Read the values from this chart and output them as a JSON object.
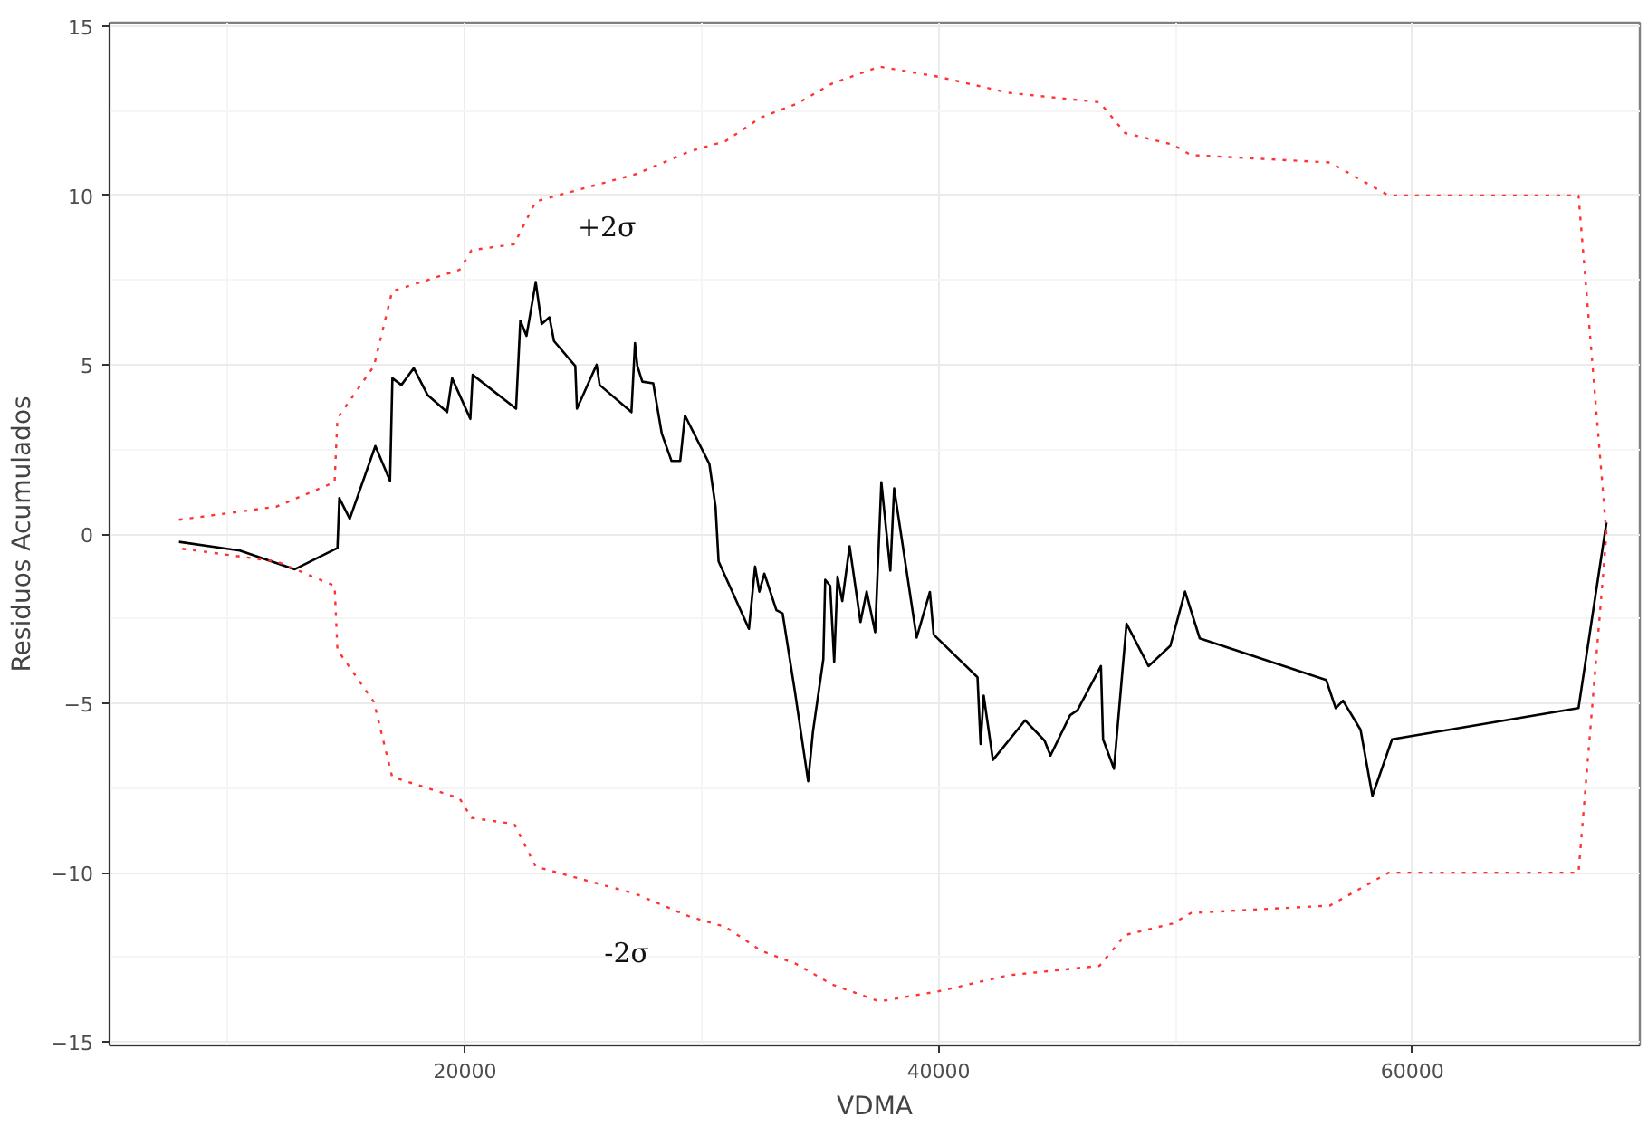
{
  "chart_data": {
    "type": "line",
    "xlabel": "VDMA",
    "ylabel": "Residuos Acumulados",
    "xlim": [
      5000,
      69600
    ],
    "ylim": [
      -15.1,
      15.1
    ],
    "xticks": [
      20000,
      40000,
      60000
    ],
    "yticks": [
      -15,
      -10,
      -5,
      0,
      5,
      10,
      15
    ],
    "grid": true,
    "series": [
      {
        "color": "#000000",
        "line_style": "solid",
        "x": [
          7930,
          10500,
          12820,
          14620,
          14700,
          15140,
          16220,
          16840,
          16940,
          17320,
          17840,
          18430,
          19250,
          19460,
          20230,
          20330,
          22160,
          22340,
          22600,
          22990,
          23240,
          23570,
          23760,
          24660,
          24730,
          25560,
          25690,
          27030,
          27180,
          27280,
          27490,
          27950,
          28310,
          28720,
          29090,
          29290,
          30320,
          30580,
          30710,
          31990,
          32250,
          32430,
          32640,
          33150,
          33410,
          33920,
          34490,
          34690,
          35130,
          35210,
          35420,
          35590,
          35730,
          35930,
          36240,
          36700,
          36960,
          37320,
          37580,
          37960,
          38120,
          39070,
          39630,
          39790,
          41640,
          41770,
          41900,
          42290,
          43650,
          44470,
          44720,
          45550,
          45860,
          46850,
          46940,
          47400,
          47930,
          48860,
          49780,
          50400,
          51020,
          56360,
          56760,
          57070,
          57810,
          58310,
          59140,
          67010,
          68190
        ],
        "values": [
          -0.23,
          -0.49,
          -1.04,
          -0.41,
          1.06,
          0.45,
          2.6,
          1.57,
          4.6,
          4.4,
          4.9,
          4.1,
          3.6,
          4.6,
          3.4,
          4.7,
          3.7,
          6.3,
          5.85,
          7.44,
          6.2,
          6.4,
          5.7,
          4.96,
          3.7,
          5.0,
          4.4,
          3.6,
          5.64,
          4.96,
          4.5,
          4.45,
          2.97,
          2.16,
          2.16,
          3.5,
          2.07,
          0.81,
          -0.81,
          -2.8,
          -0.96,
          -1.7,
          -1.17,
          -2.25,
          -2.34,
          -4.6,
          -7.3,
          -5.85,
          -3.7,
          -1.35,
          -1.53,
          -3.78,
          -1.26,
          -1.98,
          -0.36,
          -2.6,
          -1.7,
          -2.9,
          1.53,
          -1.08,
          1.35,
          -3.06,
          -1.71,
          -2.97,
          -4.23,
          -6.2,
          -4.77,
          -6.67,
          -5.5,
          -6.1,
          -6.54,
          -5.35,
          -5.2,
          -3.9,
          -6.06,
          -6.93,
          -2.65,
          -3.9,
          -3.3,
          -1.7,
          -3.08,
          -4.31,
          -5.14,
          -4.92,
          -5.78,
          -7.73,
          -6.06,
          -5.14,
          0.34
        ]
      },
      {
        "color": "#ff3333",
        "line_style": "dotted",
        "x": [
          7930,
          12050,
          14500,
          14620,
          16160,
          16930,
          19770,
          20280,
          22080,
          22990,
          27230,
          29500,
          31000,
          32500,
          34000,
          35500,
          37500,
          40000,
          42930,
          46790,
          47870,
          49880,
          50650,
          56520,
          58990,
          67010,
          68190,
          67010,
          58990,
          56520,
          50650,
          49880,
          47870,
          46790,
          42930,
          40000,
          37500,
          35500,
          34000,
          32500,
          31000,
          29500,
          27230,
          22990,
          22080,
          20280,
          19770,
          16930,
          16160,
          14620,
          14500,
          12050,
          7930
        ],
        "values": [
          0.42,
          0.81,
          1.53,
          3.42,
          4.96,
          7.17,
          7.8,
          8.38,
          8.56,
          9.82,
          10.63,
          11.3,
          11.6,
          12.3,
          12.7,
          13.3,
          13.8,
          13.5,
          13.03,
          12.75,
          11.84,
          11.5,
          11.19,
          10.97,
          10.0,
          10.0,
          0,
          -10.0,
          -10.0,
          -10.97,
          -11.19,
          -11.5,
          -11.84,
          -12.75,
          -13.03,
          -13.5,
          -13.8,
          -13.3,
          -12.7,
          -12.3,
          -11.6,
          -11.3,
          -10.63,
          -9.82,
          -8.56,
          -8.38,
          -7.8,
          -7.17,
          -4.96,
          -3.42,
          -1.53,
          -0.81,
          -0.42
        ]
      }
    ],
    "annotations": [
      "+2σ",
      "-2σ"
    ]
  }
}
